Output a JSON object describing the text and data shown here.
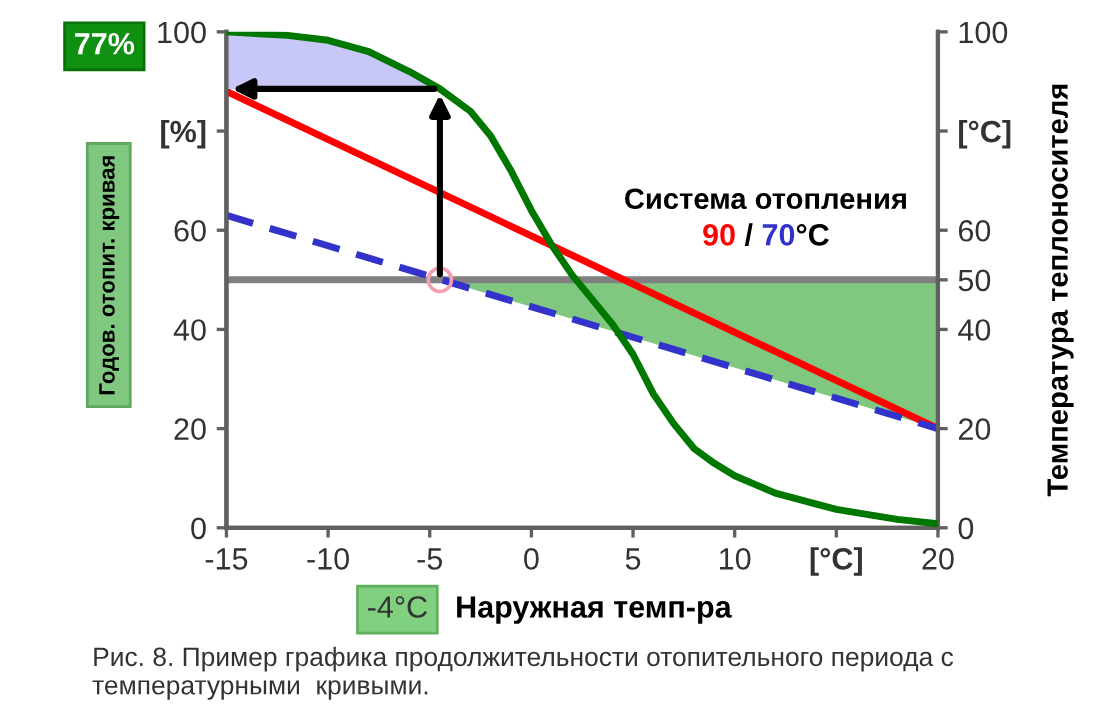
{
  "chart_data": {
    "type": "line",
    "xlabel": "Наружная темп-ра",
    "ylabel": "Годов. отопит. кривая",
    "y2label": "Температура теплоносителя",
    "xlim": [
      -15,
      20
    ],
    "xticks": [
      -15,
      -10,
      -5,
      0,
      5,
      10,
      {
        "value": 15,
        "label": "[°C]"
      },
      20
    ],
    "ylim": [
      0,
      100
    ],
    "yticks": [
      0,
      20,
      40,
      60,
      {
        "value": 80,
        "label": "[%]"
      },
      100
    ],
    "y2lim": [
      0,
      100
    ],
    "y2ticks": [
      0,
      20,
      40,
      50,
      60,
      {
        "value": 80,
        "label": "[°C]"
      },
      100
    ],
    "ref_lines": [
      {
        "axis": "y2",
        "value": 50,
        "label": null,
        "color": "#808080"
      }
    ],
    "series": [
      {
        "color": "#007800",
        "x": [
          -15,
          -12,
          -10,
          -8,
          -6,
          -4.5,
          -3,
          -2,
          -1,
          0,
          1,
          2,
          3,
          4,
          5,
          6,
          7,
          8,
          9,
          10,
          12,
          15,
          18,
          20
        ],
        "values": [
          100,
          99.3,
          98.3,
          96,
          92,
          88.5,
          84,
          79,
          72,
          64,
          57,
          51,
          46,
          41,
          35,
          27,
          21,
          16,
          13,
          10.5,
          7,
          3.7,
          1.7,
          0.8
        ]
      },
      {
        "type": "line",
        "axis": "y2",
        "name": "90",
        "color": "#ff0000",
        "x": [
          -15,
          20
        ],
        "values": [
          88,
          20
        ]
      },
      {
        "type": "line",
        "axis": "y2",
        "name": "70",
        "color": "#3333cc",
        "line_style": "dashed",
        "x": [
          -15,
          20
        ],
        "values": [
          63,
          20
        ]
      },
      {
        "type": "scatter",
        "axis": "y2",
        "color": "#f0a0b0",
        "marker": "circle",
        "x": [
          -4.5
        ],
        "values": [
          50
        ]
      }
    ],
    "annotations": [
      "77%",
      "-4°C",
      "Система отопления",
      " / ",
      "°C",
      "Рис. 8. Пример графика продолжительности отопительного периода с температурными  кривыми."
    ],
    "grid": false,
    "legend": false
  }
}
